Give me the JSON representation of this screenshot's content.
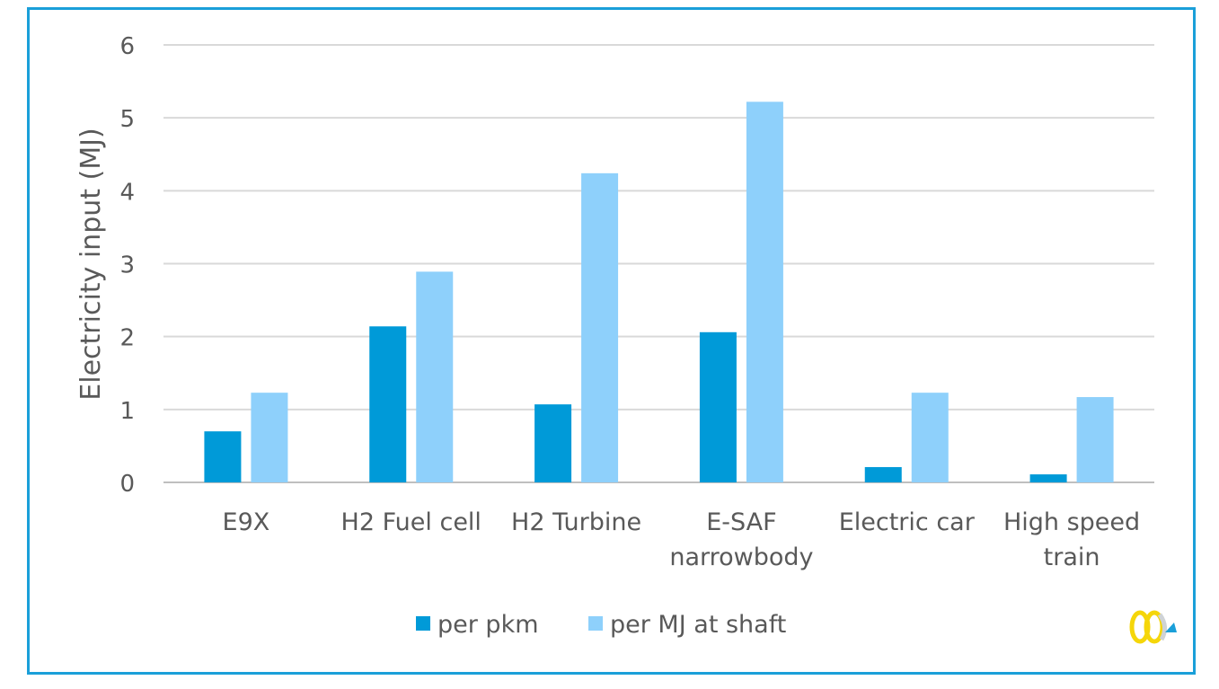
{
  "chart_data": {
    "type": "bar",
    "title": "",
    "xlabel": "",
    "ylabel": "Electricity input (MJ)",
    "ylim": [
      0,
      6
    ],
    "yticks": [
      0,
      1,
      2,
      3,
      4,
      5,
      6
    ],
    "grid": true,
    "legend_position": "bottom",
    "categories": [
      [
        "E9X"
      ],
      [
        "H2 Fuel cell"
      ],
      [
        "H2 Turbine"
      ],
      [
        "E-SAF",
        "narrowbody"
      ],
      [
        "Electric car"
      ],
      [
        "High speed",
        "train"
      ]
    ],
    "series": [
      {
        "name": "per pkm",
        "color": "#009ad8",
        "values": [
          0.7,
          2.14,
          1.07,
          2.06,
          0.21,
          0.11
        ]
      },
      {
        "name": "per MJ at shaft",
        "color": "#8ed0fb",
        "values": [
          1.23,
          2.89,
          4.24,
          5.22,
          1.23,
          1.17
        ]
      }
    ]
  },
  "frame_color": "#1a9fd9"
}
